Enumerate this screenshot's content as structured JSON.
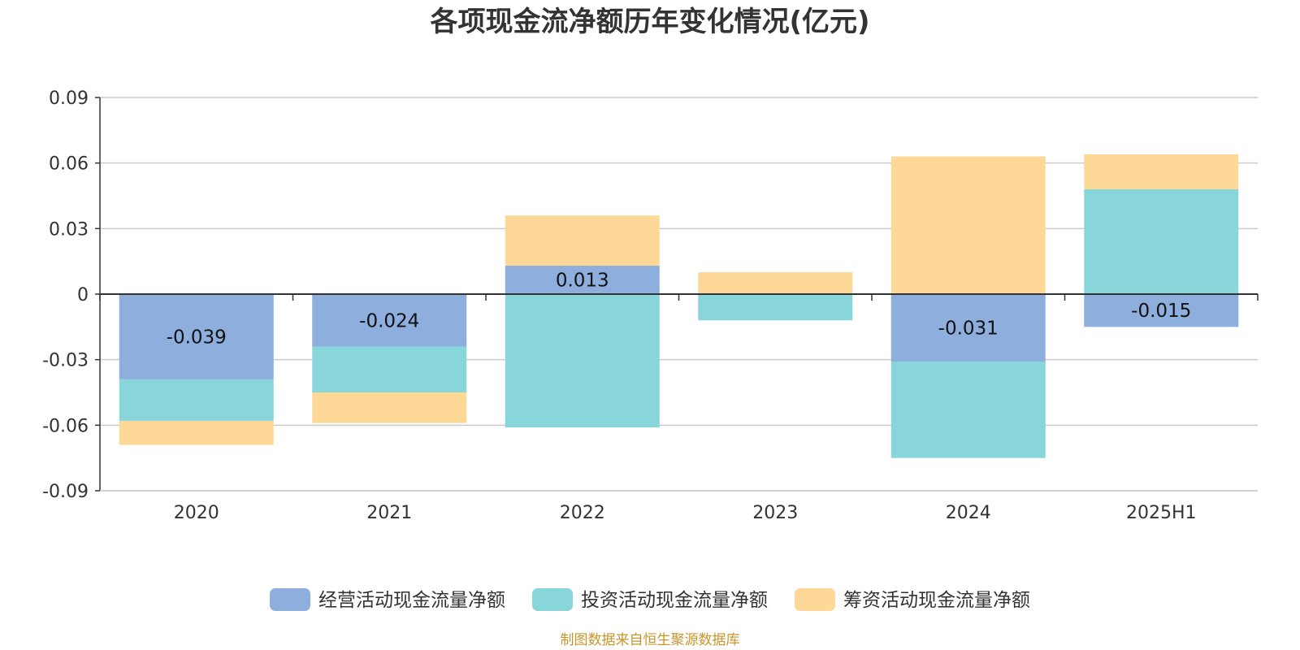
{
  "chart_data": {
    "type": "bar",
    "stacked": true,
    "title": "各项现金流净额历年变化情况(亿元)",
    "categories": [
      "2020",
      "2021",
      "2022",
      "2023",
      "2024",
      "2025H1"
    ],
    "ylim": [
      -0.09,
      0.09
    ],
    "yticks": [
      0.09,
      0.06,
      0.03,
      0,
      -0.03,
      -0.06,
      -0.09
    ],
    "ytick_labels": [
      "0.09",
      "0.06",
      "0.03",
      "0",
      "-0.03",
      "-0.06",
      "-0.09"
    ],
    "grid": true,
    "legend_position": "bottom",
    "series": [
      {
        "name": "经营活动现金流量净额",
        "color": "#8eaedd",
        "values": [
          -0.039,
          -0.024,
          0.013,
          0,
          -0.031,
          -0.015
        ],
        "labels": [
          "-0.039",
          "-0.024",
          "0.013",
          "",
          "-0.031",
          "-0.015"
        ]
      },
      {
        "name": "投资活动现金流量净额",
        "color": "#88d6d9",
        "values": [
          -0.019,
          -0.021,
          -0.061,
          -0.012,
          -0.044,
          0.048
        ],
        "labels": [
          "",
          "",
          "",
          "",
          "",
          ""
        ]
      },
      {
        "name": "筹资活动现金流量净额",
        "color": "#fed897",
        "values": [
          -0.011,
          -0.014,
          0.023,
          0.01,
          0.063,
          0.016
        ],
        "labels": [
          "",
          "",
          "",
          "",
          "",
          ""
        ]
      }
    ],
    "source": "制图数据来自恒生聚源数据库"
  }
}
